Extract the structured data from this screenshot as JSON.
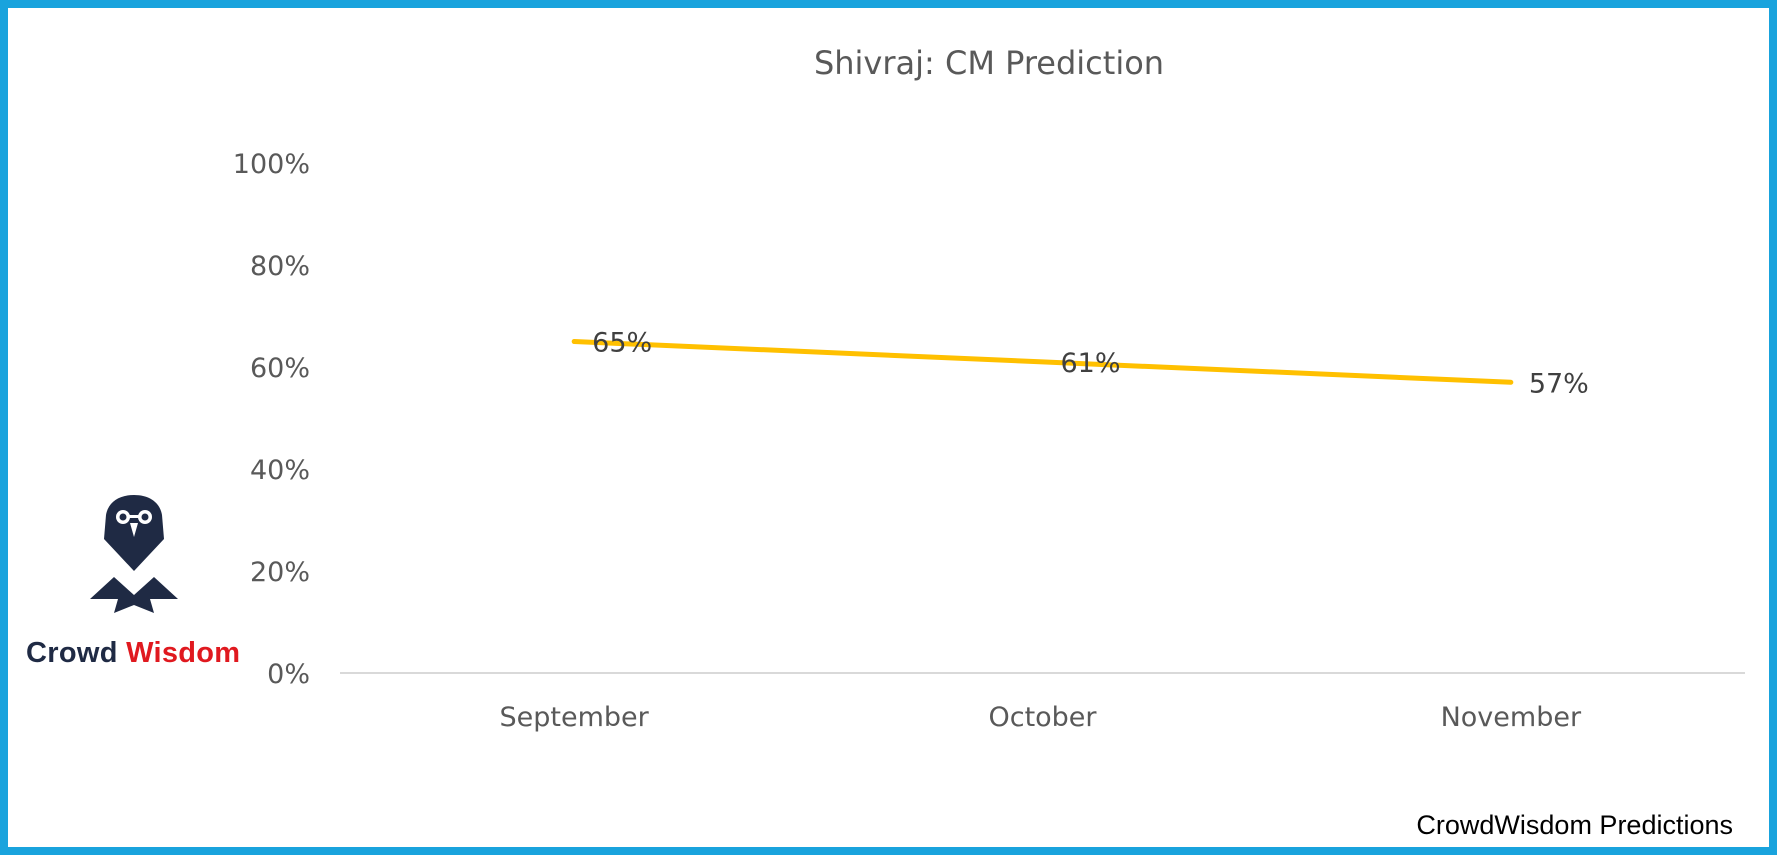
{
  "brand": {
    "logo_word1": "Crowd",
    "logo_word2": "Wisdom",
    "footer": "CrowdWisdom Predictions"
  },
  "colors": {
    "border": "#19a3dd",
    "line": "#ffc000",
    "logo_dark": "#1f2a44",
    "logo_red": "#e0191f",
    "axis": "#d9d9d9",
    "text": "#595959"
  },
  "chart_data": {
    "type": "line",
    "title": "Shivraj: CM Prediction",
    "categories": [
      "September",
      "October",
      "November"
    ],
    "series": [
      {
        "values": [
          65,
          61,
          57
        ],
        "labels": [
          "65%",
          "61%",
          "57%"
        ],
        "color": "#ffc000"
      }
    ],
    "ylim": [
      0,
      100
    ],
    "yticks": [
      0,
      20,
      40,
      60,
      80,
      100
    ],
    "ytick_labels": [
      "0%",
      "20%",
      "40%",
      "60%",
      "80%",
      "100%"
    ],
    "grid": false,
    "legend": "none"
  }
}
